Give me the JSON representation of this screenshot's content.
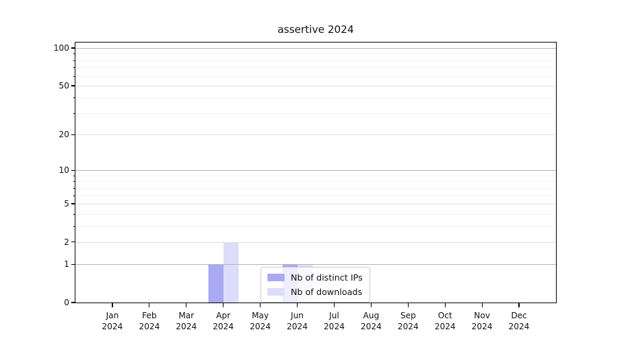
{
  "chart_data": {
    "type": "bar",
    "title": "assertive 2024",
    "categories": [
      {
        "label": "Jan",
        "sublabel": "2024"
      },
      {
        "label": "Feb",
        "sublabel": "2024"
      },
      {
        "label": "Mar",
        "sublabel": "2024"
      },
      {
        "label": "Apr",
        "sublabel": "2024"
      },
      {
        "label": "May",
        "sublabel": "2024"
      },
      {
        "label": "Jun",
        "sublabel": "2024"
      },
      {
        "label": "Jul",
        "sublabel": "2024"
      },
      {
        "label": "Aug",
        "sublabel": "2024"
      },
      {
        "label": "Sep",
        "sublabel": "2024"
      },
      {
        "label": "Oct",
        "sublabel": "2024"
      },
      {
        "label": "Nov",
        "sublabel": "2024"
      },
      {
        "label": "Dec",
        "sublabel": "2024"
      }
    ],
    "series": [
      {
        "name": "Nb of distinct IPs",
        "color": "#a9a9f4",
        "values": [
          0,
          0,
          0,
          1,
          0,
          1,
          0,
          0,
          0,
          0,
          0,
          0
        ]
      },
      {
        "name": "Nb of downloads",
        "color": "#dcdcfb",
        "values": [
          0,
          0,
          0,
          2,
          0,
          1,
          0,
          0,
          0,
          0,
          0,
          0
        ]
      }
    ],
    "yscale": "log1p",
    "ylim": [
      0,
      110
    ],
    "yticks_major": [
      0,
      1,
      2,
      5,
      10,
      20,
      50,
      100
    ],
    "yticks_minor": [
      3,
      4,
      6,
      7,
      8,
      9,
      30,
      40,
      60,
      70,
      80,
      90
    ],
    "grid": "horizontal",
    "legend_position": "lower center",
    "grid_colors": {
      "power_of_ten": "#b4b4b4",
      "labeled": "#dfdfdf",
      "minor": "#f1f1f1"
    }
  }
}
